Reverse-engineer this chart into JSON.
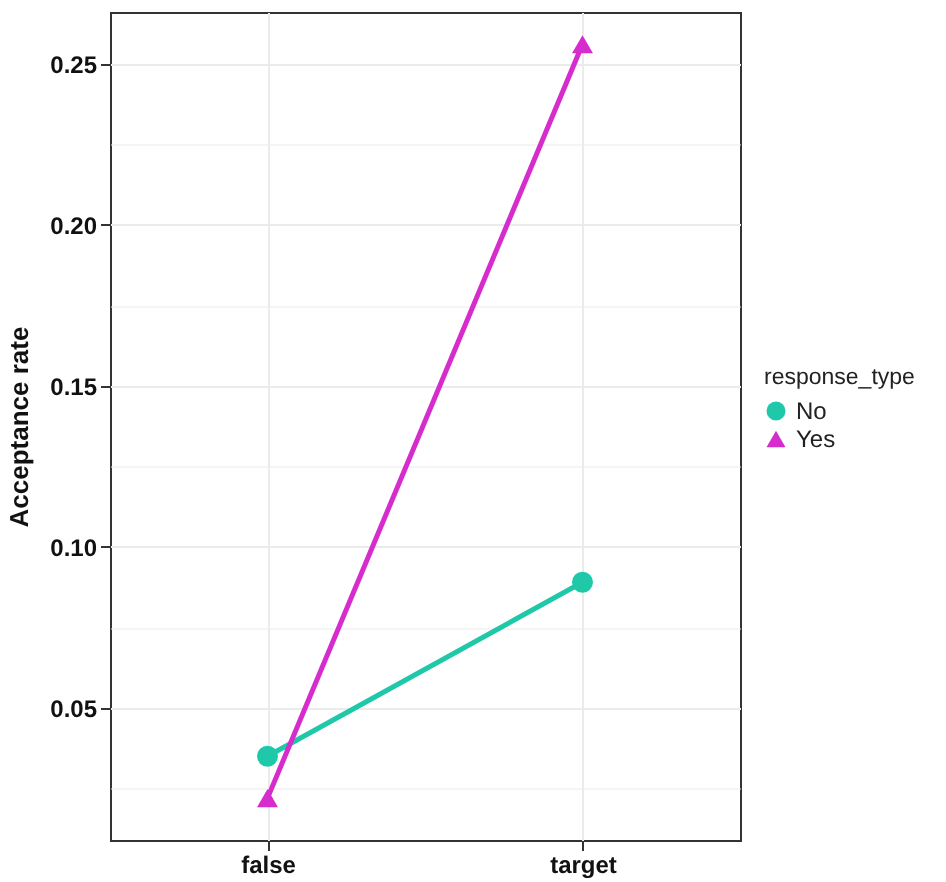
{
  "chart_data": {
    "type": "line",
    "ylabel": "Acceptance rate",
    "legend_title": "response_type",
    "categories": [
      "false",
      "target"
    ],
    "series": [
      {
        "name": "No",
        "color": "#1fc8a8",
        "marker": "circle",
        "values": [
          0.035,
          0.089
        ]
      },
      {
        "name": "Yes",
        "color": "#d62ccd",
        "marker": "triangle",
        "values": [
          0.022,
          0.256
        ]
      }
    ],
    "ylim": [
      0.009,
      0.266
    ],
    "yticks": [
      {
        "value": 0.025,
        "label": null
      },
      0.05,
      {
        "value": 0.075,
        "label": null
      },
      {
        "value": 0.1,
        "label": "0.10"
      },
      {
        "value": 0.125,
        "label": null
      },
      0.15,
      {
        "value": 0.175,
        "label": null
      },
      {
        "value": 0.2,
        "label": "0.20"
      },
      {
        "value": 0.225,
        "label": null
      },
      0.25
    ],
    "grid": true,
    "legend": "right",
    "line_style": "solid"
  }
}
